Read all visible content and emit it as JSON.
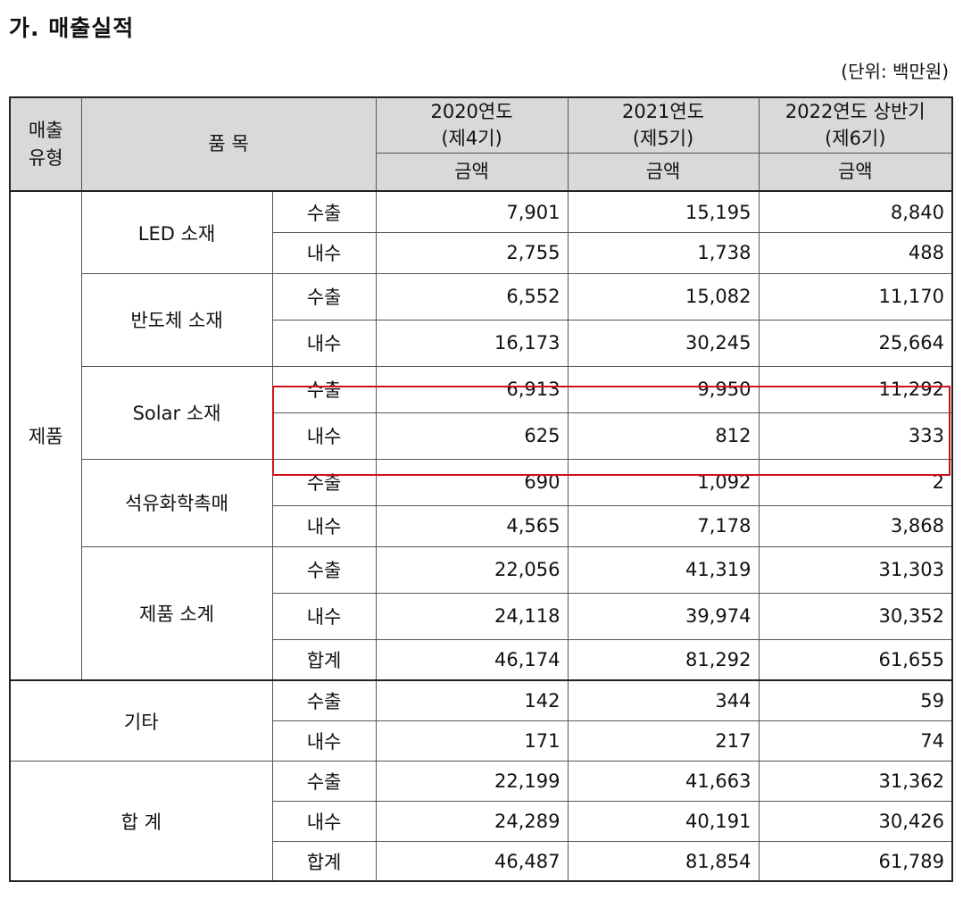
{
  "title": "가. 매출실적",
  "unit": "(단위: 백만원)",
  "header": {
    "type_label": "매출\n유형",
    "item_label": "품 목",
    "years": [
      {
        "year": "2020연도",
        "period": "(제4기)",
        "amount": "금액"
      },
      {
        "year": "2021연도",
        "period": "(제5기)",
        "amount": "금액"
      },
      {
        "year": "2022연도 상반기",
        "period": "(제6기)",
        "amount": "금액"
      }
    ]
  },
  "groups": {
    "product": "제품",
    "other": "기타",
    "total": "합 계"
  },
  "items": {
    "led": "LED 소재",
    "semi": "반도체 소재",
    "solar": "Solar 소재",
    "petro": "석유화학촉매",
    "subtotal": "제품 소계"
  },
  "rows": [
    {
      "kind": "수출",
      "v": [
        "7,901",
        "15,195",
        "8,840"
      ]
    },
    {
      "kind": "내수",
      "v": [
        "2,755",
        "1,738",
        "488"
      ]
    },
    {
      "kind": "수출",
      "v": [
        "6,552",
        "15,082",
        "11,170"
      ]
    },
    {
      "kind": "내수",
      "v": [
        "16,173",
        "30,245",
        "25,664"
      ]
    },
    {
      "kind": "수출",
      "v": [
        "6,913",
        "9,950",
        "11,292"
      ]
    },
    {
      "kind": "내수",
      "v": [
        "625",
        "812",
        "333"
      ]
    },
    {
      "kind": "수출",
      "v": [
        "690",
        "1,092",
        "2"
      ]
    },
    {
      "kind": "내수",
      "v": [
        "4,565",
        "7,178",
        "3,868"
      ]
    },
    {
      "kind": "수출",
      "v": [
        "22,056",
        "41,319",
        "31,303"
      ]
    },
    {
      "kind": "내수",
      "v": [
        "24,118",
        "39,974",
        "30,352"
      ]
    },
    {
      "kind": "합계",
      "v": [
        "46,174",
        "81,292",
        "61,655"
      ]
    },
    {
      "kind": "수출",
      "v": [
        "142",
        "344",
        "59"
      ]
    },
    {
      "kind": "내수",
      "v": [
        "171",
        "217",
        "74"
      ]
    },
    {
      "kind": "수출",
      "v": [
        "22,199",
        "41,663",
        "31,362"
      ]
    },
    {
      "kind": "내수",
      "v": [
        "24,289",
        "40,191",
        "30,426"
      ]
    },
    {
      "kind": "합계",
      "v": [
        "46,487",
        "81,854",
        "61,789"
      ]
    }
  ],
  "highlight_color": "#d0101a"
}
